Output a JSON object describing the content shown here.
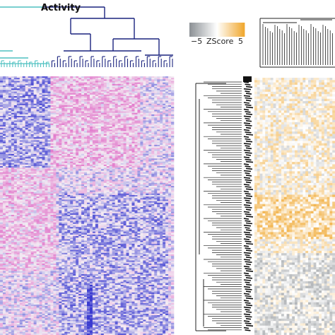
{
  "title": "Activity",
  "colors": {
    "teal_dendrogram": "#4fc1c1",
    "navy_dendrogram": "#1a237e",
    "heat_low": "#3a3ad0",
    "heat_mid": "#f4eef4",
    "heat_high": "#e070c8",
    "zscore_low": "#8d9296",
    "zscore_mid": "#ffffff",
    "zscore_high": "#f0a830",
    "tree": "#222222"
  },
  "chart_data": [
    {
      "type": "heatmap",
      "id": "activity-heatmap",
      "title": "Activity",
      "colormap": [
        "#3a3ad0",
        "#f4eef4",
        "#e070c8"
      ],
      "column_dendrogram": {
        "clusters": [
          "teal",
          "navy"
        ]
      },
      "rows": 170,
      "cols": 62
    },
    {
      "type": "heatmap",
      "id": "zscore-heatmap",
      "colorbar": {
        "label": "ZScore",
        "min": -5,
        "max": 5,
        "ticks": [
          "−5",
          "5"
        ]
      },
      "colormap": [
        "#8d9296",
        "#ffffff",
        "#f0a830"
      ],
      "rows": 110,
      "cols": 30
    }
  ]
}
